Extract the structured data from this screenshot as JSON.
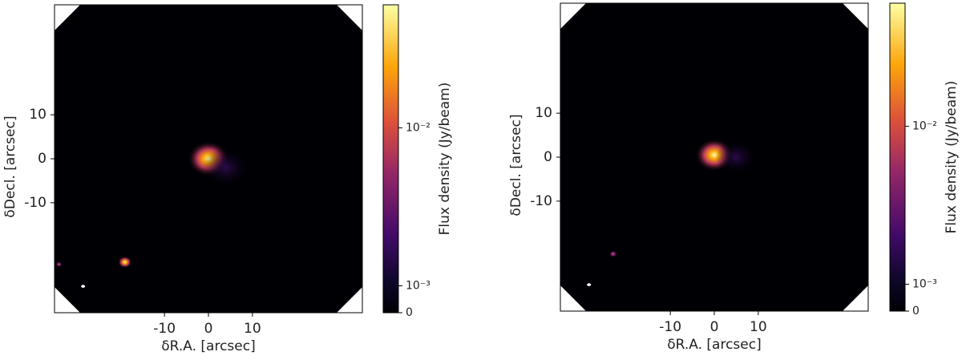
{
  "chart_data": [
    {
      "type": "image",
      "xlabel": "δR.A. [arcsec]",
      "ylabel": "δDecl. [arcsec]",
      "xlim": [
        -35,
        35
      ],
      "ylim": [
        -35,
        35
      ],
      "xticks": [
        -10,
        0,
        10
      ],
      "yticks": [
        -10,
        0,
        10
      ],
      "colorbar_label": "Flux density (Jy/beam)",
      "cscale": "symlog",
      "linthresh": 0.0007,
      "linscale": 0.015,
      "clim": [
        0,
        0.06
      ],
      "cticks": [
        0,
        {
          "value": 0.001,
          "label": "10⁻³"
        },
        {
          "value": 0.01,
          "label": "10⁻²"
        }
      ]
    },
    {
      "type": "image",
      "xlabel": "δR.A. [arcsec]",
      "ylabel": "δDecl. [arcsec]",
      "xlim": [
        -35,
        35
      ],
      "ylim": [
        -35,
        35
      ],
      "xticks": [
        -10,
        0,
        10
      ],
      "yticks": [
        -10,
        0,
        10
      ],
      "colorbar_label": "Flux density (Jy/beam)",
      "cscale": "symlog",
      "linthresh": 0.0007,
      "linscale": 0.015,
      "clim": [
        0,
        0.06
      ],
      "cticks": [
        0,
        {
          "value": 0.001,
          "label": "10⁻³"
        },
        {
          "value": 0.01,
          "label": "10⁻²"
        }
      ]
    }
  ]
}
